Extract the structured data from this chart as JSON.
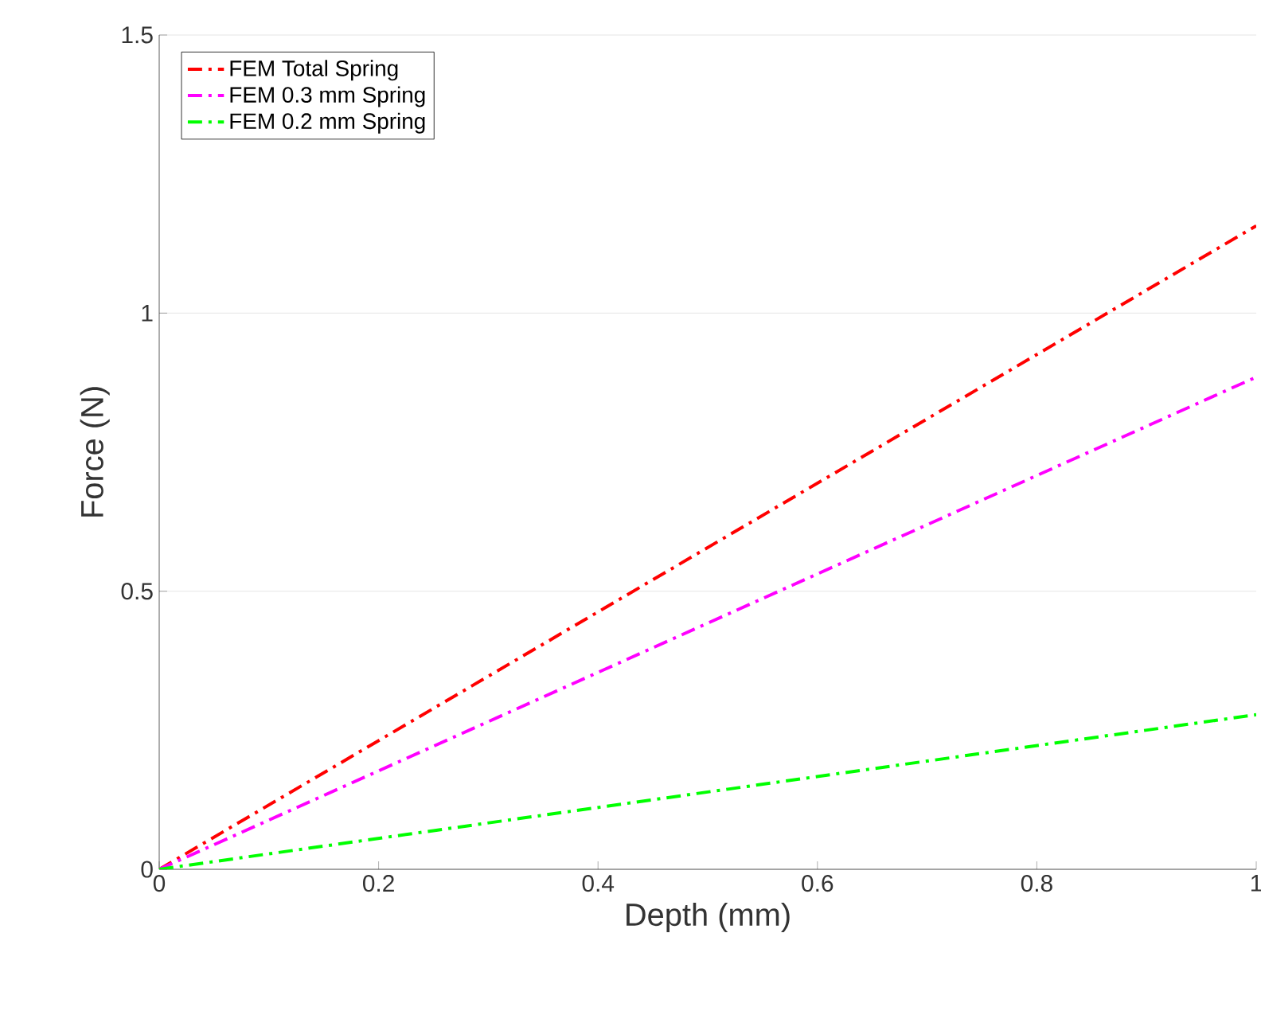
{
  "chart_data": {
    "type": "line",
    "xlabel": "Depth (mm)",
    "ylabel": "Force (N)",
    "x": [
      0,
      1
    ],
    "series": [
      {
        "name": "FEM Total Spring",
        "color": "#ff0000",
        "values": [
          0,
          1.157
        ]
      },
      {
        "name": "FEM 0.3 mm Spring",
        "color": "#ff00ff",
        "values": [
          0,
          0.885
        ]
      },
      {
        "name": "FEM 0.2 mm Spring",
        "color": "#00ff00",
        "values": [
          0,
          0.278
        ]
      }
    ],
    "xlim": [
      0,
      1
    ],
    "ylim": [
      0,
      1.5
    ],
    "xticks": [
      0,
      0.2,
      0.4,
      0.6,
      0.8,
      1
    ],
    "yticks": [
      0,
      0.5,
      1,
      1.5
    ],
    "grid": "y",
    "legend": "top left",
    "marker": "none",
    "line_style": "dashdot"
  }
}
